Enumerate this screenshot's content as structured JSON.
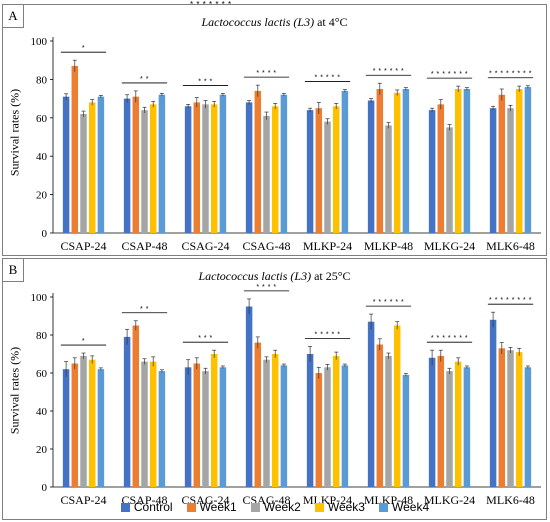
{
  "colors": {
    "Control": "#4472c4",
    "Week1": "#ed7d31",
    "Week2": "#a5a5a5",
    "Week3": "#ffc000",
    "Week4": "#5b9bd5"
  },
  "stray_mark": "* * * * * * *",
  "legend": [
    "Control",
    "Week1",
    "Week2",
    "Week3",
    "Week4"
  ],
  "ylabel": "Survival rates (%)",
  "chart_data": [
    {
      "panel": "A",
      "type": "bar",
      "title_italic": "Lactococcus lactis (L3)",
      "title_suffix": " at 4°C",
      "ylim": [
        0,
        100
      ],
      "yticks": [
        0,
        20,
        40,
        60,
        80,
        100
      ],
      "categories": [
        "CSAP-24",
        "CSAP-48",
        "CSAG-24",
        "CSAG-48",
        "MLKP-24",
        "MLKP-48",
        "MLKG-24",
        "MLK6-48"
      ],
      "significance": [
        "*",
        "* *",
        "* * *",
        "* * * *",
        "* * * * *",
        "* * * * * *",
        "* * * * * * *",
        "* * * * * * * *"
      ],
      "series": [
        {
          "name": "Control",
          "values": [
            71,
            70,
            66,
            68,
            64,
            69,
            64,
            65
          ],
          "err": [
            1.5,
            2,
            1,
            1,
            1,
            1,
            1,
            1
          ]
        },
        {
          "name": "Week1",
          "values": [
            87,
            71,
            68,
            74,
            65,
            75,
            67,
            72
          ],
          "err": [
            3,
            3,
            2.5,
            3,
            3,
            3,
            2.5,
            3
          ]
        },
        {
          "name": "Week2",
          "values": [
            62,
            64,
            67,
            61,
            58,
            56,
            55,
            65
          ],
          "err": [
            1.5,
            1.5,
            2,
            2,
            1.5,
            1.5,
            1.5,
            1.5
          ]
        },
        {
          "name": "Week3",
          "values": [
            68,
            67,
            67,
            66,
            66,
            73,
            75,
            75
          ],
          "err": [
            1.5,
            1.5,
            1.5,
            1.5,
            1.5,
            1.5,
            1.5,
            1.5
          ]
        },
        {
          "name": "Week4",
          "values": [
            71,
            72,
            72,
            72,
            74,
            75,
            75,
            76
          ],
          "err": [
            0.7,
            0.7,
            0.7,
            0.7,
            0.7,
            0.7,
            0.7,
            0.7
          ]
        }
      ]
    },
    {
      "panel": "B",
      "type": "bar",
      "title_italic": "Lactococcus lactis (L3)",
      "title_suffix": " at 25°C",
      "ylim": [
        0,
        100
      ],
      "yticks": [
        0,
        20,
        40,
        60,
        80,
        100
      ],
      "categories": [
        "CSAP-24",
        "CSAP-48",
        "CSAG-24",
        "CSAG-48",
        "MLKP-24",
        "MLKP-48",
        "MLKG-24",
        "MLK6-48"
      ],
      "significance": [
        "*",
        "* *",
        "* * *",
        "* * * *",
        "* * * * *",
        "* * * * * *",
        "* * * * * * *",
        "* * * * * * * *"
      ],
      "series": [
        {
          "name": "Control",
          "values": [
            62,
            79,
            63,
            95,
            70,
            87,
            68,
            88
          ],
          "err": [
            4,
            4,
            4,
            4,
            4,
            4,
            4,
            4
          ]
        },
        {
          "name": "Week1",
          "values": [
            65,
            85,
            65,
            76,
            60,
            75,
            69,
            73
          ],
          "err": [
            3,
            2.5,
            3,
            3,
            3,
            3,
            3,
            3
          ]
        },
        {
          "name": "Week2",
          "values": [
            69,
            66,
            61,
            67,
            63,
            69,
            61,
            72
          ],
          "err": [
            1.5,
            1.5,
            1.5,
            1.5,
            1.5,
            1.5,
            1.5,
            1.5
          ]
        },
        {
          "name": "Week3",
          "values": [
            67,
            66,
            70,
            70,
            69,
            85,
            66,
            71
          ],
          "err": [
            2,
            2.5,
            2,
            2,
            2,
            2,
            2,
            2
          ]
        },
        {
          "name": "Week4",
          "values": [
            62,
            61,
            63,
            64,
            64,
            59,
            63,
            63
          ],
          "err": [
            0.7,
            0.7,
            0.7,
            0.7,
            0.7,
            0.7,
            0.7,
            0.7
          ]
        }
      ]
    }
  ]
}
